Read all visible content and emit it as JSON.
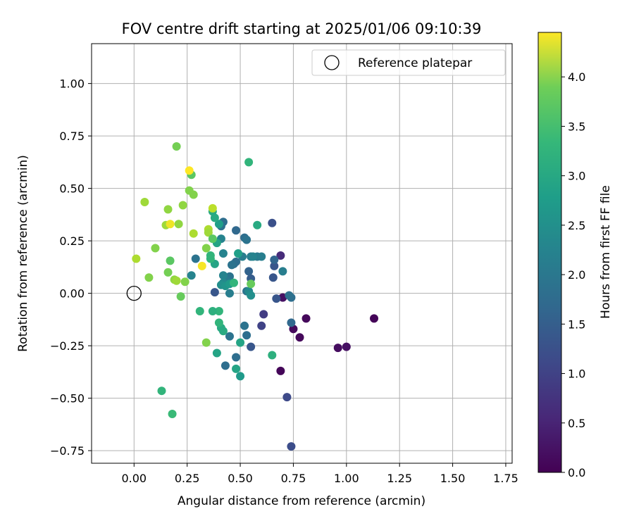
{
  "chart_data": {
    "type": "scatter",
    "title": "FOV centre drift starting at 2025/01/06 09:10:39",
    "xlabel": "Angular distance from reference (arcmin)",
    "ylabel": "Rotation from reference (arcmin)",
    "xlim": [
      -0.2,
      1.78
    ],
    "ylim": [
      -0.81,
      1.19
    ],
    "xticks": [
      0.0,
      0.25,
      0.5,
      0.75,
      1.0,
      1.25,
      1.5,
      1.75
    ],
    "xtick_labels": [
      "0.00",
      "0.25",
      "0.50",
      "0.75",
      "1.00",
      "1.25",
      "1.50",
      "1.75"
    ],
    "yticks": [
      -0.75,
      -0.5,
      -0.25,
      0.0,
      0.25,
      0.5,
      0.75,
      1.0
    ],
    "ytick_labels": [
      "−0.75",
      "−0.50",
      "−0.25",
      "0.00",
      "0.25",
      "0.50",
      "0.75",
      "1.00"
    ],
    "grid": true,
    "legend": {
      "placement": "top-right",
      "entries": [
        "Reference platepar"
      ]
    },
    "reference_point": {
      "x": 0.0,
      "y": 0.0,
      "label": "Reference platepar"
    },
    "colorbar": {
      "label": "Hours from first FF file",
      "colormap": "viridis",
      "range": [
        0.0,
        4.45
      ],
      "ticks": [
        0.0,
        0.5,
        1.0,
        1.5,
        2.0,
        2.5,
        3.0,
        3.5,
        4.0
      ],
      "tick_labels": [
        "0.0",
        "0.5",
        "1.0",
        "1.5",
        "2.0",
        "2.5",
        "3.0",
        "3.5",
        "4.0"
      ]
    },
    "points": [
      {
        "x": 1.13,
        "y": -0.12,
        "h": 0.05
      },
      {
        "x": 0.81,
        "y": -0.12,
        "h": 0.1
      },
      {
        "x": 0.78,
        "y": -0.21,
        "h": 0.1
      },
      {
        "x": 0.75,
        "y": -0.17,
        "h": 0.1
      },
      {
        "x": 0.96,
        "y": -0.26,
        "h": 0.15
      },
      {
        "x": 1.0,
        "y": -0.255,
        "h": 0.2
      },
      {
        "x": 0.69,
        "y": -0.37,
        "h": 0.05
      },
      {
        "x": 0.7,
        "y": -0.02,
        "h": 0.2
      },
      {
        "x": 0.69,
        "y": 0.18,
        "h": 0.55
      },
      {
        "x": 0.61,
        "y": -0.1,
        "h": 0.8
      },
      {
        "x": 0.6,
        "y": -0.155,
        "h": 0.9
      },
      {
        "x": 0.72,
        "y": -0.495,
        "h": 1.0
      },
      {
        "x": 0.74,
        "y": -0.73,
        "h": 1.05
      },
      {
        "x": 0.65,
        "y": 0.335,
        "h": 1.1
      },
      {
        "x": 0.67,
        "y": -0.025,
        "h": 1.2
      },
      {
        "x": 0.66,
        "y": 0.13,
        "h": 1.2
      },
      {
        "x": 0.655,
        "y": 0.075,
        "h": 1.2
      },
      {
        "x": 0.66,
        "y": 0.16,
        "h": 1.45
      },
      {
        "x": 0.74,
        "y": -0.14,
        "h": 1.5
      },
      {
        "x": 0.74,
        "y": -0.02,
        "h": 1.6
      },
      {
        "x": 0.73,
        "y": -0.01,
        "h": 1.65
      },
      {
        "x": 0.7,
        "y": 0.105,
        "h": 1.9
      },
      {
        "x": 0.55,
        "y": -0.255,
        "h": 1.2
      },
      {
        "x": 0.54,
        "y": 0.105,
        "h": 1.4
      },
      {
        "x": 0.55,
        "y": 0.07,
        "h": 1.3
      },
      {
        "x": 0.53,
        "y": -0.2,
        "h": 1.6
      },
      {
        "x": 0.52,
        "y": -0.155,
        "h": 1.7
      },
      {
        "x": 0.52,
        "y": 0.265,
        "h": 1.6
      },
      {
        "x": 0.53,
        "y": 0.255,
        "h": 1.7
      },
      {
        "x": 0.53,
        "y": 0.01,
        "h": 1.7
      },
      {
        "x": 0.58,
        "y": 0.175,
        "h": 1.8
      },
      {
        "x": 0.55,
        "y": 0.175,
        "h": 1.9
      },
      {
        "x": 0.56,
        "y": 0.175,
        "h": 2.0
      },
      {
        "x": 0.54,
        "y": 0.01,
        "h": 2.1
      },
      {
        "x": 0.55,
        "y": -0.01,
        "h": 2.2
      },
      {
        "x": 0.6,
        "y": 0.175,
        "h": 1.9
      },
      {
        "x": 0.48,
        "y": 0.3,
        "h": 1.5
      },
      {
        "x": 0.48,
        "y": 0.15,
        "h": 1.6
      },
      {
        "x": 0.47,
        "y": 0.14,
        "h": 1.6
      },
      {
        "x": 0.46,
        "y": 0.135,
        "h": 1.7
      },
      {
        "x": 0.45,
        "y": 0.08,
        "h": 1.7
      },
      {
        "x": 0.44,
        "y": 0.06,
        "h": 1.8
      },
      {
        "x": 0.45,
        "y": 0.0,
        "h": 1.9
      },
      {
        "x": 0.45,
        "y": -0.205,
        "h": 1.7
      },
      {
        "x": 0.48,
        "y": -0.305,
        "h": 1.6
      },
      {
        "x": 0.43,
        "y": -0.345,
        "h": 1.6
      },
      {
        "x": 0.51,
        "y": 0.175,
        "h": 1.9
      },
      {
        "x": 0.49,
        "y": 0.19,
        "h": 2.5
      },
      {
        "x": 0.42,
        "y": 0.085,
        "h": 2.0
      },
      {
        "x": 0.42,
        "y": 0.05,
        "h": 2.1
      },
      {
        "x": 0.41,
        "y": 0.04,
        "h": 2.2
      },
      {
        "x": 0.43,
        "y": 0.035,
        "h": 2.3
      },
      {
        "x": 0.45,
        "y": 0.045,
        "h": 2.4
      },
      {
        "x": 0.47,
        "y": 0.05,
        "h": 2.9
      },
      {
        "x": 0.42,
        "y": 0.34,
        "h": 1.6
      },
      {
        "x": 0.41,
        "y": 0.32,
        "h": 1.7
      },
      {
        "x": 0.42,
        "y": 0.19,
        "h": 2.0
      },
      {
        "x": 0.41,
        "y": 0.26,
        "h": 2.0
      },
      {
        "x": 0.4,
        "y": 0.33,
        "h": 2.5
      },
      {
        "x": 0.39,
        "y": 0.24,
        "h": 2.6
      },
      {
        "x": 0.38,
        "y": 0.36,
        "h": 2.7
      },
      {
        "x": 0.37,
        "y": 0.39,
        "h": 2.7
      },
      {
        "x": 0.38,
        "y": 0.14,
        "h": 2.6
      },
      {
        "x": 0.36,
        "y": 0.165,
        "h": 2.9
      },
      {
        "x": 0.36,
        "y": 0.18,
        "h": 2.9
      },
      {
        "x": 0.38,
        "y": 0.005,
        "h": 1.2
      },
      {
        "x": 0.5,
        "y": -0.235,
        "h": 2.6
      },
      {
        "x": 0.5,
        "y": -0.395,
        "h": 2.4
      },
      {
        "x": 0.48,
        "y": -0.36,
        "h": 2.6
      },
      {
        "x": 0.39,
        "y": -0.285,
        "h": 2.6
      },
      {
        "x": 0.42,
        "y": -0.18,
        "h": 2.7
      },
      {
        "x": 0.41,
        "y": -0.165,
        "h": 2.7
      },
      {
        "x": 0.4,
        "y": -0.14,
        "h": 2.9
      },
      {
        "x": 0.4,
        "y": -0.085,
        "h": 2.9
      },
      {
        "x": 0.37,
        "y": -0.085,
        "h": 2.8
      },
      {
        "x": 0.31,
        "y": -0.085,
        "h": 2.9
      },
      {
        "x": 0.34,
        "y": -0.235,
        "h": 3.6
      },
      {
        "x": 0.58,
        "y": 0.325,
        "h": 2.7
      },
      {
        "x": 0.54,
        "y": 0.625,
        "h": 2.9
      },
      {
        "x": 0.55,
        "y": 0.045,
        "h": 3.4
      },
      {
        "x": 0.65,
        "y": -0.295,
        "h": 2.8
      },
      {
        "x": 0.27,
        "y": 0.085,
        "h": 2.0
      },
      {
        "x": 0.29,
        "y": 0.165,
        "h": 1.7
      },
      {
        "x": 0.27,
        "y": 0.565,
        "h": 3.3
      },
      {
        "x": 0.28,
        "y": 0.47,
        "h": 3.6
      },
      {
        "x": 0.26,
        "y": 0.49,
        "h": 3.6
      },
      {
        "x": 0.28,
        "y": 0.285,
        "h": 3.9
      },
      {
        "x": 0.26,
        "y": 0.585,
        "h": 4.45
      },
      {
        "x": 0.32,
        "y": 0.13,
        "h": 4.4
      },
      {
        "x": 0.34,
        "y": 0.215,
        "h": 3.6
      },
      {
        "x": 0.35,
        "y": 0.305,
        "h": 3.9
      },
      {
        "x": 0.35,
        "y": 0.29,
        "h": 3.8
      },
      {
        "x": 0.37,
        "y": 0.405,
        "h": 4.0
      },
      {
        "x": 0.37,
        "y": 0.26,
        "h": 3.3
      },
      {
        "x": 0.2,
        "y": 0.7,
        "h": 3.5
      },
      {
        "x": 0.23,
        "y": 0.42,
        "h": 3.7
      },
      {
        "x": 0.21,
        "y": 0.33,
        "h": 3.7
      },
      {
        "x": 0.16,
        "y": 0.4,
        "h": 3.7
      },
      {
        "x": 0.15,
        "y": 0.325,
        "h": 3.8
      },
      {
        "x": 0.17,
        "y": 0.33,
        "h": 4.35
      },
      {
        "x": 0.05,
        "y": 0.435,
        "h": 3.8
      },
      {
        "x": 0.1,
        "y": 0.215,
        "h": 3.6
      },
      {
        "x": 0.01,
        "y": 0.165,
        "h": 3.9
      },
      {
        "x": 0.07,
        "y": 0.075,
        "h": 3.6
      },
      {
        "x": 0.16,
        "y": 0.1,
        "h": 3.5
      },
      {
        "x": 0.17,
        "y": 0.155,
        "h": 3.3
      },
      {
        "x": 0.19,
        "y": 0.065,
        "h": 3.7
      },
      {
        "x": 0.2,
        "y": 0.06,
        "h": 3.8
      },
      {
        "x": 0.24,
        "y": 0.055,
        "h": 3.6
      },
      {
        "x": 0.22,
        "y": -0.015,
        "h": 3.4
      },
      {
        "x": 0.13,
        "y": -0.465,
        "h": 2.9
      },
      {
        "x": 0.18,
        "y": -0.575,
        "h": 3.0
      }
    ]
  }
}
